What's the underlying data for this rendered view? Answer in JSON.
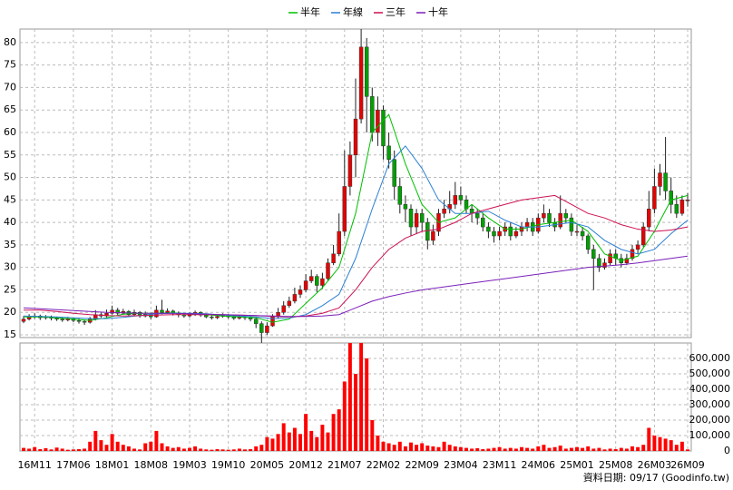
{
  "chart_data": {
    "type": "candlestick",
    "legend_position": "top",
    "categories": [
      null,
      null,
      "16M11",
      null,
      null,
      null,
      null,
      null,
      null,
      "17M06",
      null,
      null,
      null,
      null,
      null,
      null,
      "18M01",
      null,
      null,
      null,
      null,
      null,
      null,
      "18M08",
      null,
      null,
      null,
      null,
      null,
      null,
      "19M03",
      null,
      null,
      null,
      null,
      null,
      null,
      "19M10",
      null,
      null,
      null,
      null,
      null,
      null,
      "20M05",
      null,
      null,
      null,
      null,
      null,
      null,
      "20M12",
      null,
      null,
      null,
      null,
      null,
      null,
      "21M07",
      null,
      null,
      null,
      null,
      null,
      null,
      "22M02",
      null,
      null,
      null,
      null,
      null,
      null,
      "22M09",
      null,
      null,
      null,
      null,
      null,
      null,
      "23M04",
      null,
      null,
      null,
      null,
      null,
      null,
      "23M11",
      null,
      null,
      null,
      null,
      null,
      null,
      "24M06",
      null,
      null,
      null,
      null,
      null,
      null,
      "25M01",
      null,
      null,
      null,
      null,
      null,
      null,
      "25M08",
      null,
      null,
      null,
      null,
      null,
      null,
      "26M03",
      null,
      null,
      null,
      null,
      null,
      "26M09"
    ],
    "open": [
      18,
      18.5,
      19,
      19.2,
      18.8,
      19,
      18.7,
      18.5,
      18.3,
      18.6,
      18.2,
      18,
      17.8,
      18.5,
      19.5,
      19.2,
      19.8,
      20.5,
      19.8,
      20.2,
      19.5,
      20,
      19.2,
      19.6,
      19,
      20.5,
      20,
      20.3,
      19.8,
      19.5,
      19.2,
      19.6,
      20,
      19.4,
      19,
      18.8,
      19.1,
      19.3,
      19,
      18.7,
      19,
      18.8,
      18.5,
      17.5,
      15.5,
      17,
      19,
      20,
      21.5,
      22.5,
      24,
      25,
      27,
      28,
      26,
      27.5,
      31,
      33,
      38,
      48,
      55,
      63,
      79,
      68,
      60,
      65,
      57,
      54,
      48,
      44,
      43,
      39,
      42,
      40,
      36,
      38,
      42,
      43,
      44,
      46,
      45,
      43,
      42,
      41,
      39,
      38,
      37,
      38,
      39,
      37,
      38,
      39,
      40,
      38,
      41,
      42,
      40,
      39,
      42,
      41,
      38,
      38,
      37,
      34,
      32,
      30,
      31,
      33,
      32,
      31,
      32,
      34,
      35,
      39,
      43,
      48,
      51,
      47,
      44,
      42,
      45
    ],
    "high": [
      19.2,
      19.6,
      19.8,
      19.5,
      19.4,
      19.3,
      19,
      18.9,
      19,
      18.9,
      18.6,
      18.4,
      19,
      20.5,
      20,
      20.6,
      21.5,
      21,
      20.8,
      20.5,
      20.6,
      20.3,
      20.2,
      19.9,
      21.5,
      22.8,
      20.9,
      20.6,
      20.2,
      19.9,
      20,
      20.4,
      20.2,
      19.8,
      19.3,
      19.5,
      19.8,
      19.6,
      19.3,
      19.4,
      19.3,
      19.2,
      19,
      18,
      17.8,
      19.6,
      21,
      22.5,
      23.5,
      25.5,
      26,
      28.5,
      29.5,
      28.5,
      28.8,
      32,
      35,
      42,
      56,
      58,
      72,
      83,
      81,
      70,
      68,
      66,
      60,
      56,
      50,
      46,
      44,
      43,
      43,
      41,
      39.5,
      43,
      45,
      47,
      49,
      48,
      46,
      44,
      43,
      42,
      40,
      39,
      39,
      40,
      40,
      39,
      40,
      41,
      41,
      42,
      44,
      43,
      41,
      46,
      43,
      42,
      39.5,
      39,
      37.5,
      35,
      33,
      32,
      34,
      34,
      33,
      33,
      35,
      36,
      40,
      47,
      52,
      53,
      59,
      50,
      46,
      46,
      46.5
    ],
    "low": [
      17.6,
      18.2,
      18.6,
      18.3,
      18.4,
      18.2,
      18.1,
      17.9,
      18,
      17.8,
      17.5,
      17.2,
      17.5,
      18.2,
      18.8,
      18.9,
      19.5,
      19.4,
      19.5,
      19,
      19.2,
      18.8,
      18.9,
      18.5,
      18.8,
      19.6,
      19.7,
      19.3,
      18.9,
      18.8,
      18.9,
      19.2,
      19,
      18.7,
      18.4,
      18.5,
      18.8,
      18.6,
      18.3,
      18.4,
      18.3,
      18,
      16.5,
      13.2,
      15,
      16.8,
      18.6,
      19.5,
      21,
      22,
      23.2,
      24.5,
      26.5,
      24.5,
      25.2,
      27,
      30.5,
      32.5,
      37,
      46,
      50,
      62,
      60,
      58,
      57,
      54,
      52,
      45,
      42,
      40,
      37,
      37.5,
      38,
      34,
      35,
      37,
      41,
      42,
      43,
      44,
      42,
      40,
      39.5,
      38,
      36.5,
      35.5,
      36,
      37,
      36,
      36.5,
      37,
      38,
      37,
      37.5,
      40,
      39,
      38,
      38.5,
      40,
      37,
      37,
      36,
      33,
      25,
      29,
      29.5,
      30.5,
      30.5,
      30,
      30.5,
      31.5,
      33,
      34.5,
      38,
      42,
      46,
      45,
      42,
      41,
      41.5,
      43.5
    ],
    "close": [
      18.5,
      19,
      19.2,
      18.8,
      19,
      18.7,
      18.5,
      18.3,
      18.6,
      18.2,
      18,
      17.8,
      18.5,
      19.5,
      19.2,
      19.8,
      20.5,
      19.8,
      20.2,
      19.5,
      20,
      19.2,
      19.6,
      19,
      20.5,
      20,
      20.3,
      19.8,
      19.5,
      19.2,
      19.6,
      20,
      19.4,
      19,
      18.8,
      19.1,
      19.3,
      19,
      18.7,
      19,
      18.8,
      18.5,
      17.5,
      15.5,
      17,
      19,
      20,
      21.5,
      22.5,
      24,
      25,
      27,
      28,
      26,
      27.5,
      31,
      33,
      38,
      48,
      55,
      63,
      79,
      68,
      60,
      65,
      57,
      54,
      48,
      44,
      43,
      39,
      42,
      40,
      36,
      38,
      42,
      43,
      44,
      46,
      45,
      43,
      42,
      41,
      39,
      38,
      37,
      38,
      39,
      37,
      38,
      39,
      40,
      38,
      41,
      42,
      40,
      39,
      42,
      41,
      38,
      38,
      37,
      34,
      32,
      30,
      31,
      33,
      32,
      31,
      32,
      34,
      35,
      39,
      43,
      48,
      51,
      47,
      44,
      42,
      45,
      45
    ],
    "up_color": "#e60000",
    "down_color": "#00a000",
    "ylim": [
      14.4,
      83
    ],
    "yticks": [
      15,
      20,
      25,
      30,
      35,
      40,
      45,
      50,
      55,
      60,
      65,
      70,
      75,
      80
    ],
    "grid": true,
    "lines": {
      "x": [
        0,
        3,
        6,
        9,
        12,
        15,
        18,
        21,
        24,
        27,
        30,
        33,
        36,
        39,
        42,
        45,
        48,
        51,
        54,
        57,
        60,
        63,
        66,
        69,
        72,
        75,
        78,
        81,
        84,
        87,
        90,
        93,
        96,
        99,
        102,
        105,
        108,
        111,
        114,
        117,
        120
      ],
      "series": [
        {
          "name": "半年",
          "color": "#00c000",
          "values": [
            19,
            19,
            18.8,
            18.5,
            18.2,
            18.8,
            19.6,
            19.8,
            19.8,
            19.9,
            19.7,
            19.5,
            19.2,
            19,
            18.8,
            17.8,
            18.5,
            22,
            25.5,
            30,
            42,
            60,
            64,
            53,
            44,
            40,
            41,
            44,
            41,
            38.5,
            38.5,
            39.5,
            40,
            40.5,
            38,
            33,
            31.5,
            32.5,
            38,
            45,
            46
          ]
        },
        {
          "name": "年線",
          "color": "#2a7fd4",
          "values": [
            19.2,
            19.1,
            19,
            18.8,
            18.6,
            18.6,
            18.9,
            19.3,
            19.7,
            19.8,
            19.8,
            19.7,
            19.4,
            19.2,
            19,
            18.6,
            18.7,
            19.5,
            21.5,
            24,
            32,
            43,
            53,
            57,
            52,
            45,
            42,
            42,
            42.5,
            40.5,
            39,
            39,
            39.5,
            40,
            39,
            36,
            34,
            33,
            34,
            37.5,
            40.5
          ]
        },
        {
          "name": "三年",
          "color": "#cc1155",
          "values": [
            20.5,
            20.5,
            20.2,
            19.8,
            19.5,
            19.3,
            19.2,
            19.3,
            19.4,
            19.5,
            19.5,
            19.5,
            19.5,
            19.4,
            19.3,
            19.1,
            19,
            19.2,
            19.8,
            21,
            25,
            30,
            34,
            36.5,
            38,
            38.5,
            40,
            42,
            43,
            44,
            45,
            45.5,
            46,
            44,
            42,
            41,
            39.5,
            38.5,
            38,
            38.3,
            39
          ]
        },
        {
          "name": "十年",
          "color": "#7a1fb8",
          "values": [
            21,
            20.8,
            20.6,
            20.4,
            20.2,
            20,
            19.9,
            19.8,
            19.8,
            19.8,
            19.7,
            19.6,
            19.5,
            19.4,
            19.3,
            19.2,
            19.1,
            19.1,
            19.2,
            19.5,
            21,
            22.5,
            23.5,
            24.3,
            25,
            25.5,
            26,
            26.5,
            27,
            27.5,
            28,
            28.5,
            29,
            29.5,
            30,
            30.3,
            30.6,
            31,
            31.5,
            32,
            32.5
          ]
        }
      ]
    },
    "volume": {
      "color": "#ff0000",
      "values": [
        20000,
        15000,
        25000,
        12000,
        18000,
        10000,
        22000,
        15000,
        8000,
        10000,
        12000,
        15000,
        60000,
        130000,
        70000,
        40000,
        110000,
        60000,
        40000,
        30000,
        15000,
        10000,
        50000,
        60000,
        130000,
        50000,
        30000,
        20000,
        25000,
        15000,
        20000,
        30000,
        15000,
        10000,
        8000,
        12000,
        10000,
        8000,
        10000,
        15000,
        10000,
        12000,
        30000,
        40000,
        90000,
        80000,
        110000,
        180000,
        120000,
        150000,
        110000,
        240000,
        130000,
        90000,
        170000,
        120000,
        240000,
        270000,
        450000,
        700000,
        500000,
        700000,
        600000,
        200000,
        100000,
        60000,
        50000,
        40000,
        60000,
        30000,
        55000,
        40000,
        50000,
        35000,
        30000,
        25000,
        60000,
        40000,
        30000,
        25000,
        20000,
        15000,
        18000,
        12000,
        15000,
        20000,
        25000,
        15000,
        20000,
        15000,
        25000,
        20000,
        15000,
        30000,
        40000,
        20000,
        25000,
        35000,
        15000,
        20000,
        25000,
        20000,
        30000,
        15000,
        20000,
        10000,
        15000,
        12000,
        20000,
        15000,
        30000,
        25000,
        40000,
        150000,
        100000,
        90000,
        80000,
        70000,
        40000,
        60000,
        10000
      ],
      "ylim": [
        0,
        700000
      ],
      "yticks": [
        0,
        {
          "value": 100000,
          "label": "100,000"
        },
        {
          "value": 200000,
          "label": "200,000"
        },
        {
          "value": 300000,
          "label": "300,000"
        },
        {
          "value": 400000,
          "label": "400,000"
        },
        {
          "value": 500000,
          "label": "500,000"
        },
        {
          "value": 600000,
          "label": "600,000"
        }
      ]
    },
    "footnote": "資料日期: 09/17 (Goodinfo.tw)"
  }
}
